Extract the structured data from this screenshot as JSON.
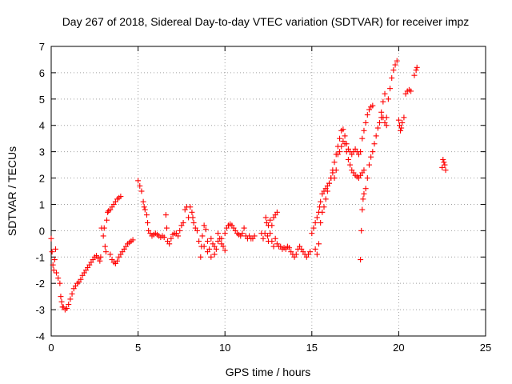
{
  "chart_data": {
    "type": "scatter",
    "title": "Day 267 of 2018, Sidereal Day-to-day VTEC variation (SDTVAR) for receiver impz",
    "xlabel": "GPS time / hours",
    "ylabel": "SDTVAR / TECUs",
    "xlim": [
      0,
      25
    ],
    "ylim": [
      -4,
      7
    ],
    "xticks": [
      0,
      5,
      10,
      15,
      20,
      25
    ],
    "yticks": [
      -4,
      -3,
      -2,
      -1,
      0,
      1,
      2,
      3,
      4,
      5,
      6,
      7
    ],
    "grid": true,
    "marker": "plus",
    "color": "#ff0000",
    "series": [
      {
        "values": [
          [
            0.0,
            -0.3
          ],
          [
            0.05,
            -0.8
          ],
          [
            0.1,
            -1.3
          ],
          [
            0.15,
            -1.5
          ],
          [
            0.2,
            -1.1
          ],
          [
            0.25,
            -0.7
          ],
          [
            0.3,
            -1.6
          ],
          [
            0.4,
            -1.8
          ],
          [
            0.5,
            -2.0
          ],
          [
            0.55,
            -2.5
          ],
          [
            0.6,
            -2.7
          ],
          [
            0.65,
            -2.9
          ],
          [
            0.7,
            -2.9
          ],
          [
            0.8,
            -3.0
          ],
          [
            0.9,
            -2.95
          ],
          [
            1.0,
            -2.8
          ],
          [
            1.1,
            -2.6
          ],
          [
            1.2,
            -2.4
          ],
          [
            1.3,
            -2.2
          ],
          [
            1.4,
            -2.1
          ],
          [
            1.5,
            -2.0
          ],
          [
            1.6,
            -1.95
          ],
          [
            1.7,
            -1.85
          ],
          [
            1.8,
            -1.7
          ],
          [
            1.9,
            -1.6
          ],
          [
            2.0,
            -1.5
          ],
          [
            2.1,
            -1.4
          ],
          [
            2.2,
            -1.3
          ],
          [
            2.3,
            -1.2
          ],
          [
            2.4,
            -1.1
          ],
          [
            2.5,
            -1.0
          ],
          [
            2.6,
            -0.95
          ],
          [
            2.7,
            -1.05
          ],
          [
            2.8,
            -1.15
          ],
          [
            2.85,
            -1.0
          ],
          [
            2.9,
            0.1
          ],
          [
            3.0,
            -0.2
          ],
          [
            3.05,
            0.1
          ],
          [
            3.1,
            -0.6
          ],
          [
            3.15,
            -0.8
          ],
          [
            3.2,
            0.4
          ],
          [
            3.25,
            0.7
          ],
          [
            3.3,
            0.75
          ],
          [
            3.4,
            0.8
          ],
          [
            3.5,
            0.9
          ],
          [
            3.6,
            1.0
          ],
          [
            3.7,
            1.1
          ],
          [
            3.8,
            1.2
          ],
          [
            3.9,
            1.25
          ],
          [
            4.0,
            1.3
          ],
          [
            3.4,
            -0.9
          ],
          [
            3.5,
            -1.1
          ],
          [
            3.6,
            -1.2
          ],
          [
            3.7,
            -1.25
          ],
          [
            3.8,
            -1.15
          ],
          [
            3.9,
            -1.0
          ],
          [
            4.0,
            -0.9
          ],
          [
            4.1,
            -0.8
          ],
          [
            4.2,
            -0.7
          ],
          [
            4.3,
            -0.6
          ],
          [
            4.4,
            -0.5
          ],
          [
            4.5,
            -0.45
          ],
          [
            4.6,
            -0.4
          ],
          [
            4.7,
            -0.35
          ],
          [
            5.0,
            1.9
          ],
          [
            5.1,
            1.7
          ],
          [
            5.2,
            1.5
          ],
          [
            5.3,
            1.1
          ],
          [
            5.35,
            0.9
          ],
          [
            5.4,
            0.8
          ],
          [
            5.5,
            0.6
          ],
          [
            5.55,
            0.3
          ],
          [
            5.6,
            0.0
          ],
          [
            5.7,
            -0.1
          ],
          [
            5.8,
            -0.2
          ],
          [
            5.9,
            -0.15
          ],
          [
            6.0,
            -0.1
          ],
          [
            6.1,
            -0.15
          ],
          [
            6.2,
            -0.2
          ],
          [
            6.3,
            -0.25
          ],
          [
            6.4,
            -0.2
          ],
          [
            6.5,
            -0.25
          ],
          [
            6.6,
            0.6
          ],
          [
            6.65,
            0.1
          ],
          [
            6.7,
            -0.4
          ],
          [
            6.8,
            -0.5
          ],
          [
            6.9,
            -0.3
          ],
          [
            7.0,
            -0.15
          ],
          [
            7.1,
            -0.1
          ],
          [
            7.2,
            -0.1
          ],
          [
            7.3,
            -0.2
          ],
          [
            7.4,
            0.0
          ],
          [
            7.5,
            0.2
          ],
          [
            7.6,
            0.3
          ],
          [
            7.7,
            0.8
          ],
          [
            7.8,
            0.9
          ],
          [
            7.9,
            0.5
          ],
          [
            8.0,
            0.9
          ],
          [
            8.1,
            0.7
          ],
          [
            8.15,
            0.5
          ],
          [
            8.2,
            0.3
          ],
          [
            8.3,
            0.1
          ],
          [
            8.4,
            0.0
          ],
          [
            8.5,
            -0.4
          ],
          [
            8.6,
            -1.0
          ],
          [
            8.65,
            -0.6
          ],
          [
            8.7,
            -0.2
          ],
          [
            8.8,
            0.2
          ],
          [
            8.9,
            0.05
          ],
          [
            9.0,
            -0.4
          ],
          [
            9.1,
            -0.7
          ],
          [
            9.2,
            -0.3
          ],
          [
            9.3,
            -0.5
          ],
          [
            9.4,
            -0.9
          ],
          [
            9.5,
            -0.7
          ],
          [
            9.6,
            -0.1
          ],
          [
            9.7,
            -0.3
          ],
          [
            9.8,
            -0.5
          ],
          [
            9.9,
            -0.6
          ],
          [
            10.0,
            -0.75
          ],
          [
            8.8,
            -0.6
          ],
          [
            9.0,
            -0.8
          ],
          [
            9.2,
            -1.0
          ],
          [
            9.4,
            -0.6
          ],
          [
            9.6,
            -0.4
          ],
          [
            9.8,
            -0.3
          ],
          [
            10.0,
            -0.1
          ],
          [
            10.1,
            0.1
          ],
          [
            10.2,
            0.2
          ],
          [
            10.3,
            0.25
          ],
          [
            10.4,
            0.2
          ],
          [
            10.5,
            0.1
          ],
          [
            10.6,
            0.0
          ],
          [
            10.7,
            -0.1
          ],
          [
            10.8,
            -0.15
          ],
          [
            10.9,
            -0.2
          ],
          [
            11.0,
            -0.1
          ],
          [
            11.1,
            0.1
          ],
          [
            11.2,
            -0.2
          ],
          [
            11.3,
            -0.3
          ],
          [
            11.4,
            -0.2
          ],
          [
            11.5,
            -0.3
          ],
          [
            11.6,
            -0.3
          ],
          [
            11.7,
            -0.2
          ],
          [
            12.1,
            -0.1
          ],
          [
            12.2,
            -0.3
          ],
          [
            12.3,
            -0.1
          ],
          [
            12.35,
            0.5
          ],
          [
            12.4,
            0.3
          ],
          [
            12.5,
            0.2
          ],
          [
            12.6,
            0.4
          ],
          [
            12.7,
            0.2
          ],
          [
            12.8,
            0.5
          ],
          [
            12.9,
            0.6
          ],
          [
            13.0,
            0.7
          ],
          [
            12.45,
            -0.2
          ],
          [
            12.5,
            -0.4
          ],
          [
            12.6,
            -0.1
          ],
          [
            12.7,
            -0.4
          ],
          [
            12.8,
            -0.6
          ],
          [
            12.9,
            -0.3
          ],
          [
            13.0,
            -0.5
          ],
          [
            13.1,
            -0.6
          ],
          [
            13.2,
            -0.6
          ],
          [
            13.3,
            -0.7
          ],
          [
            13.4,
            -0.65
          ],
          [
            13.5,
            -0.7
          ],
          [
            13.6,
            -0.6
          ],
          [
            13.7,
            -0.65
          ],
          [
            13.8,
            -0.8
          ],
          [
            13.9,
            -0.9
          ],
          [
            14.0,
            -1.0
          ],
          [
            14.1,
            -0.9
          ],
          [
            14.2,
            -0.7
          ],
          [
            14.3,
            -0.6
          ],
          [
            14.4,
            -0.7
          ],
          [
            14.5,
            -0.8
          ],
          [
            14.6,
            -0.9
          ],
          [
            14.7,
            -1.0
          ],
          [
            14.8,
            -0.9
          ],
          [
            14.9,
            -0.8
          ],
          [
            15.0,
            -0.1
          ],
          [
            15.1,
            0.1
          ],
          [
            15.2,
            0.3
          ],
          [
            15.3,
            0.5
          ],
          [
            15.4,
            0.7
          ],
          [
            15.45,
            0.9
          ],
          [
            15.5,
            1.1
          ],
          [
            15.6,
            1.4
          ],
          [
            15.7,
            1.5
          ],
          [
            15.8,
            1.6
          ],
          [
            15.9,
            1.7
          ],
          [
            16.0,
            1.8
          ],
          [
            16.1,
            2.0
          ],
          [
            16.2,
            2.3
          ],
          [
            16.3,
            2.6
          ],
          [
            16.4,
            2.9
          ],
          [
            16.5,
            3.2
          ],
          [
            16.6,
            3.5
          ],
          [
            16.7,
            3.8
          ],
          [
            16.8,
            3.85
          ],
          [
            16.9,
            3.6
          ],
          [
            17.0,
            3.3
          ],
          [
            17.1,
            3.1
          ],
          [
            17.2,
            3.0
          ],
          [
            17.3,
            2.9
          ],
          [
            17.4,
            3.0
          ],
          [
            17.5,
            3.1
          ],
          [
            17.6,
            3.0
          ],
          [
            17.7,
            2.9
          ],
          [
            17.8,
            3.0
          ],
          [
            17.9,
            3.5
          ],
          [
            18.0,
            3.8
          ],
          [
            18.1,
            4.1
          ],
          [
            18.2,
            4.4
          ],
          [
            18.3,
            4.6
          ],
          [
            18.4,
            4.7
          ],
          [
            18.5,
            4.75
          ],
          [
            15.2,
            -0.7
          ],
          [
            15.3,
            -0.9
          ],
          [
            15.4,
            -0.5
          ],
          [
            15.5,
            0.3
          ],
          [
            15.6,
            0.7
          ],
          [
            15.7,
            0.9
          ],
          [
            15.8,
            1.2
          ],
          [
            15.9,
            1.5
          ],
          [
            16.0,
            1.8
          ],
          [
            16.1,
            2.0
          ],
          [
            16.2,
            2.2
          ],
          [
            16.3,
            2.0
          ],
          [
            16.4,
            2.3
          ],
          [
            16.5,
            2.9
          ],
          [
            16.6,
            3.0
          ],
          [
            16.7,
            3.2
          ],
          [
            16.8,
            3.4
          ],
          [
            16.9,
            3.3
          ],
          [
            17.0,
            3.0
          ],
          [
            17.1,
            2.7
          ],
          [
            17.2,
            2.5
          ],
          [
            17.3,
            2.3
          ],
          [
            17.4,
            2.2
          ],
          [
            17.5,
            2.1
          ],
          [
            17.6,
            2.05
          ],
          [
            17.7,
            2.0
          ],
          [
            17.8,
            2.1
          ],
          [
            17.9,
            2.2
          ],
          [
            18.0,
            2.3
          ],
          [
            17.8,
            -1.1
          ],
          [
            17.85,
            0.0
          ],
          [
            17.9,
            0.8
          ],
          [
            17.95,
            1.2
          ],
          [
            18.0,
            1.4
          ],
          [
            18.1,
            1.6
          ],
          [
            18.2,
            2.0
          ],
          [
            18.3,
            2.5
          ],
          [
            18.4,
            2.8
          ],
          [
            18.5,
            3.0
          ],
          [
            18.6,
            3.3
          ],
          [
            18.7,
            3.6
          ],
          [
            18.8,
            3.9
          ],
          [
            18.9,
            4.1
          ],
          [
            19.0,
            4.3
          ],
          [
            19.1,
            4.3
          ],
          [
            19.2,
            4.1
          ],
          [
            19.3,
            4.0
          ],
          [
            19.4,
            5.0
          ],
          [
            19.5,
            5.4
          ],
          [
            19.6,
            5.8
          ],
          [
            19.7,
            6.1
          ],
          [
            19.8,
            6.3
          ],
          [
            19.9,
            6.45
          ],
          [
            19.0,
            4.5
          ],
          [
            19.1,
            4.9
          ],
          [
            19.2,
            5.2
          ],
          [
            19.3,
            4.3
          ],
          [
            20.0,
            4.2
          ],
          [
            20.05,
            4.0
          ],
          [
            20.1,
            3.8
          ],
          [
            20.15,
            3.9
          ],
          [
            20.2,
            4.1
          ],
          [
            20.3,
            4.3
          ],
          [
            20.4,
            5.2
          ],
          [
            20.5,
            5.3
          ],
          [
            20.6,
            5.35
          ],
          [
            20.7,
            5.3
          ],
          [
            20.9,
            5.9
          ],
          [
            21.0,
            6.1
          ],
          [
            21.05,
            6.2
          ],
          [
            22.5,
            2.4
          ],
          [
            22.55,
            2.7
          ],
          [
            22.6,
            2.6
          ],
          [
            22.65,
            2.5
          ],
          [
            22.7,
            2.3
          ]
        ]
      }
    ]
  }
}
